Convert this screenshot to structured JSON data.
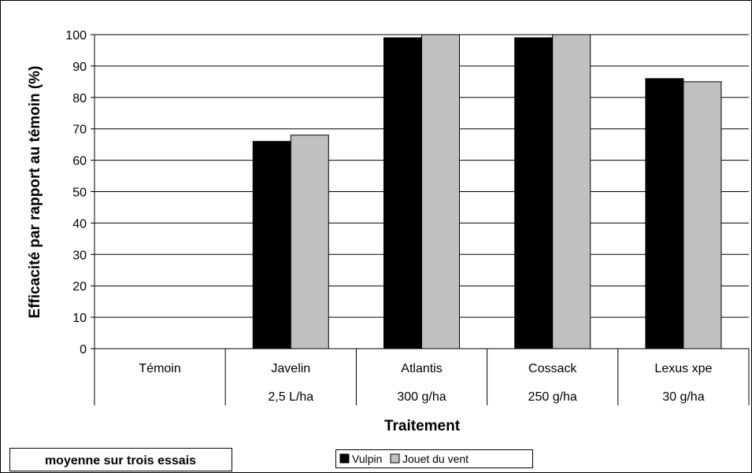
{
  "chart_data": {
    "type": "bar",
    "categories": [
      "Témoin",
      "Javelin",
      "Atlantis",
      "Cossack",
      "Lexus xpe"
    ],
    "category_doses": [
      "",
      "2,5 L/ha",
      "300 g/ha",
      "250 g/ha",
      "30 g/ha"
    ],
    "series": [
      {
        "name": "Vulpin",
        "values": [
          0,
          66,
          99,
          99,
          86
        ],
        "color": "#000000"
      },
      {
        "name": "Jouet du vent",
        "values": [
          0,
          68,
          100,
          100,
          85
        ],
        "color": "#c0c0c0"
      }
    ],
    "xlabel": "Traitement",
    "ylabel": "Efficacité par rapport au témoin (%)",
    "ylim": [
      0,
      100
    ],
    "yticks": [
      0,
      10,
      20,
      30,
      40,
      50,
      60,
      70,
      80,
      90,
      100
    ],
    "grid": true,
    "legend_position": "bottom"
  },
  "note": "moyenne sur trois essais"
}
